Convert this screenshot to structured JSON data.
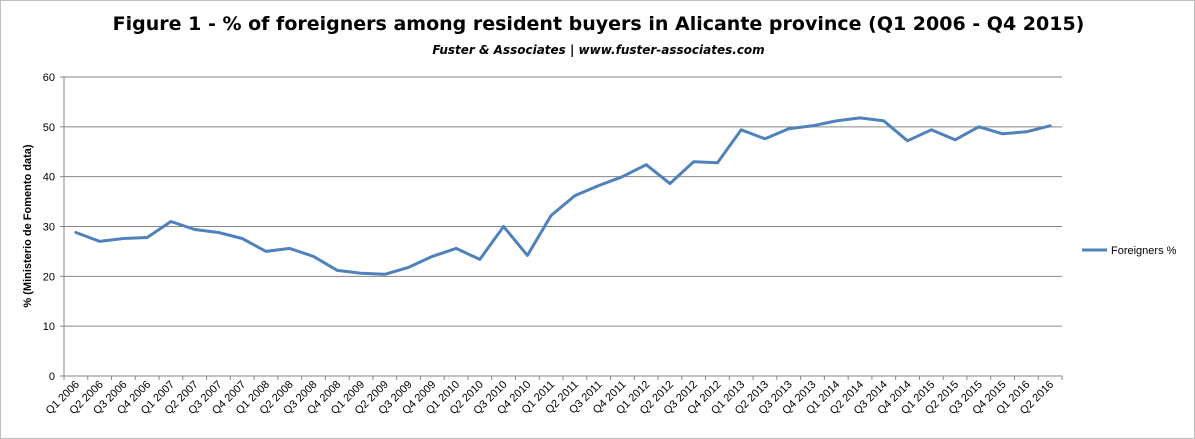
{
  "chart_data": {
    "type": "line",
    "title": "Figure 1 - % of foreigners among resident buyers in Alicante province (Q1 2006 - Q4 2015)",
    "subtitle": "Fuster & Associates | www.fuster-associates.com",
    "xlabel": "",
    "ylabel": "% (Ministerio de Fomento data)",
    "ylim": [
      0,
      60
    ],
    "yticks": [
      0,
      10,
      20,
      30,
      40,
      50,
      60
    ],
    "grid": true,
    "legend_position": "right",
    "categories": [
      "Q1 2006",
      "Q2 2006",
      "Q3 2006",
      "Q4 2006",
      "Q1 2007",
      "Q2 2007",
      "Q3 2007",
      "Q4 2007",
      "Q1 2008",
      "Q2 2008",
      "Q3 2008",
      "Q4 2008",
      "Q1 2009",
      "Q2 2009",
      "Q3 2009",
      "Q4 2009",
      "Q1 2010",
      "Q2 2010",
      "Q3 2010",
      "Q4 2010",
      "Q1 2011",
      "Q2 2011",
      "Q3 2011",
      "Q4 2011",
      "Q1 2012",
      "Q2 2012",
      "Q3 2012",
      "Q4 2012",
      "Q1 2013",
      "Q2 2013",
      "Q3 2013",
      "Q4 2013",
      "Q1 2014",
      "Q2 2014",
      "Q3 2014",
      "Q4 2014",
      "Q1 2015",
      "Q2 2015",
      "Q3 2015",
      "Q4 2015",
      "Q1 2016",
      "Q2 2016"
    ],
    "series": [
      {
        "name": "Foreigners %",
        "color": "#4f81bd",
        "values": [
          28.8,
          27.0,
          27.6,
          27.8,
          31.0,
          29.4,
          28.8,
          27.6,
          25.0,
          25.6,
          24.0,
          21.2,
          20.6,
          20.4,
          21.8,
          24.0,
          25.6,
          23.4,
          30.0,
          24.2,
          32.2,
          36.2,
          38.2,
          40.0,
          42.4,
          38.6,
          43.0,
          42.8,
          49.4,
          47.6,
          49.6,
          50.2,
          51.2,
          51.8,
          51.2,
          47.2,
          49.4,
          47.4,
          50.0,
          48.6,
          49.0,
          50.2
        ]
      }
    ]
  }
}
